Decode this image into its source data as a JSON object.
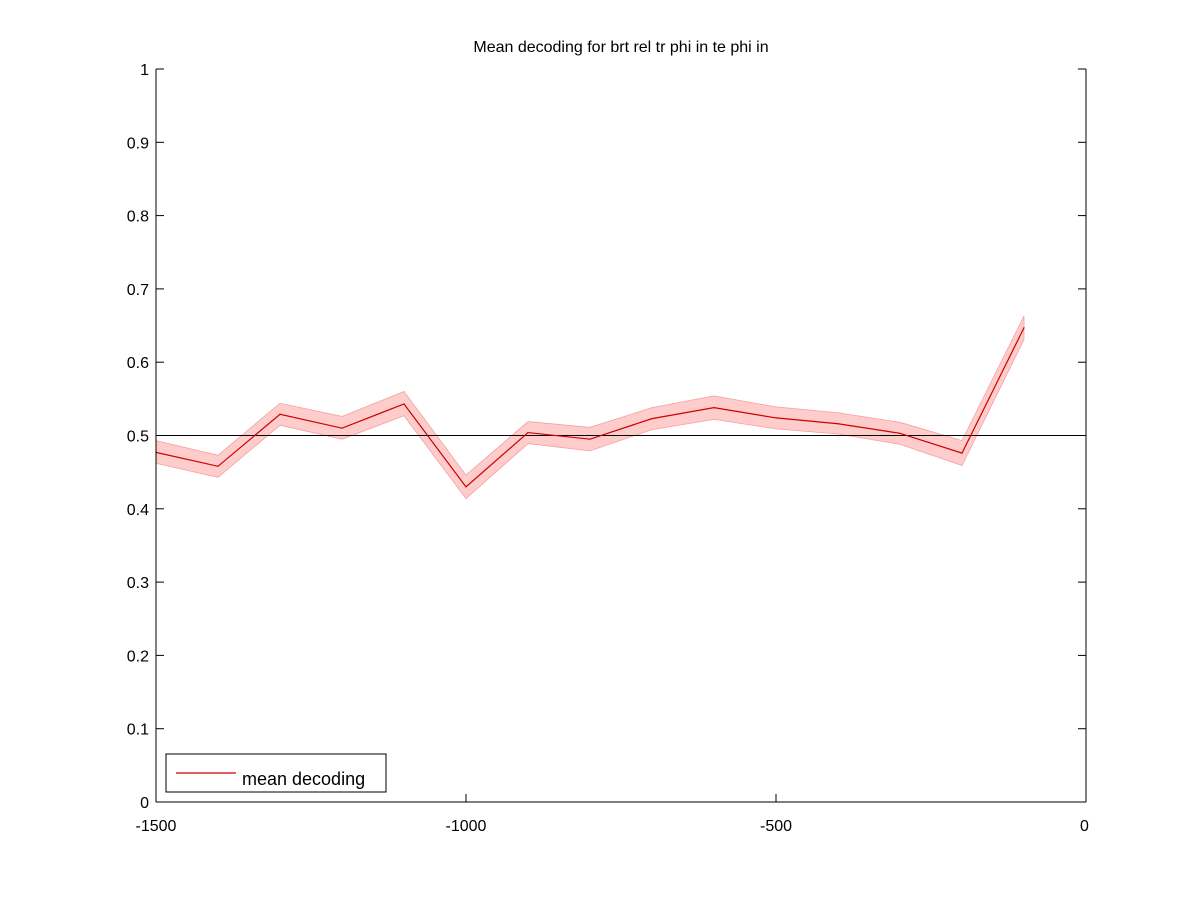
{
  "chart_data": {
    "type": "line",
    "title": "Mean decoding for brt rel tr phi in te phi in",
    "xlabel": "",
    "ylabel": "",
    "xlim": [
      -1500,
      0
    ],
    "ylim": [
      0,
      1
    ],
    "xticks": [
      -1500,
      -1000,
      -500,
      0
    ],
    "xtick_labels": [
      "-1500",
      "-1000",
      "-500",
      "0"
    ],
    "yticks": [
      0,
      0.1,
      0.2,
      0.3,
      0.4,
      0.5,
      0.6,
      0.7,
      0.8,
      0.9,
      1
    ],
    "ytick_labels": [
      "0",
      "0.1",
      "0.2",
      "0.3",
      "0.4",
      "0.5",
      "0.6",
      "0.7",
      "0.8",
      "0.9",
      "1"
    ],
    "grid": false,
    "legend_position": "bottom-left",
    "series": [
      {
        "name": "mean decoding",
        "color": "#cc0000",
        "band_color": "#ffcccc",
        "x": [
          -1500,
          -1400,
          -1300,
          -1200,
          -1100,
          -1000,
          -900,
          -800,
          -700,
          -600,
          -500,
          -400,
          -300,
          -200,
          -100
        ],
        "values": [
          0.477,
          0.458,
          0.529,
          0.51,
          0.543,
          0.43,
          0.504,
          0.495,
          0.523,
          0.538,
          0.524,
          0.516,
          0.503,
          0.476,
          0.647
        ],
        "lower": [
          0.462,
          0.443,
          0.514,
          0.495,
          0.527,
          0.414,
          0.489,
          0.479,
          0.508,
          0.522,
          0.509,
          0.502,
          0.488,
          0.459,
          0.631
        ],
        "upper": [
          0.493,
          0.473,
          0.544,
          0.526,
          0.56,
          0.446,
          0.519,
          0.511,
          0.538,
          0.554,
          0.539,
          0.531,
          0.518,
          0.493,
          0.663
        ]
      }
    ],
    "reference_line": {
      "y": 0.5,
      "color": "#000000"
    }
  }
}
